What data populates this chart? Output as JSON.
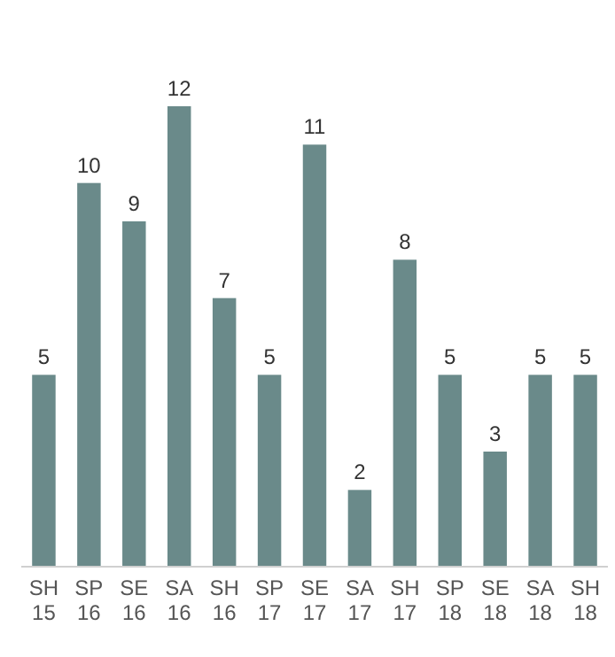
{
  "chart_data": {
    "type": "bar",
    "categories": [
      "SH\n15",
      "SP\n16",
      "SE\n16",
      "SA\n16",
      "SH\n16",
      "SP\n17",
      "SE\n17",
      "SA\n17",
      "SH\n17",
      "SP\n18",
      "SE\n18",
      "SA\n18",
      "SH\n18"
    ],
    "values": [
      5,
      10,
      9,
      12,
      7,
      5,
      11,
      2,
      8,
      5,
      3,
      5,
      5
    ],
    "color": "#6a8a8a",
    "data_labels": true
  }
}
